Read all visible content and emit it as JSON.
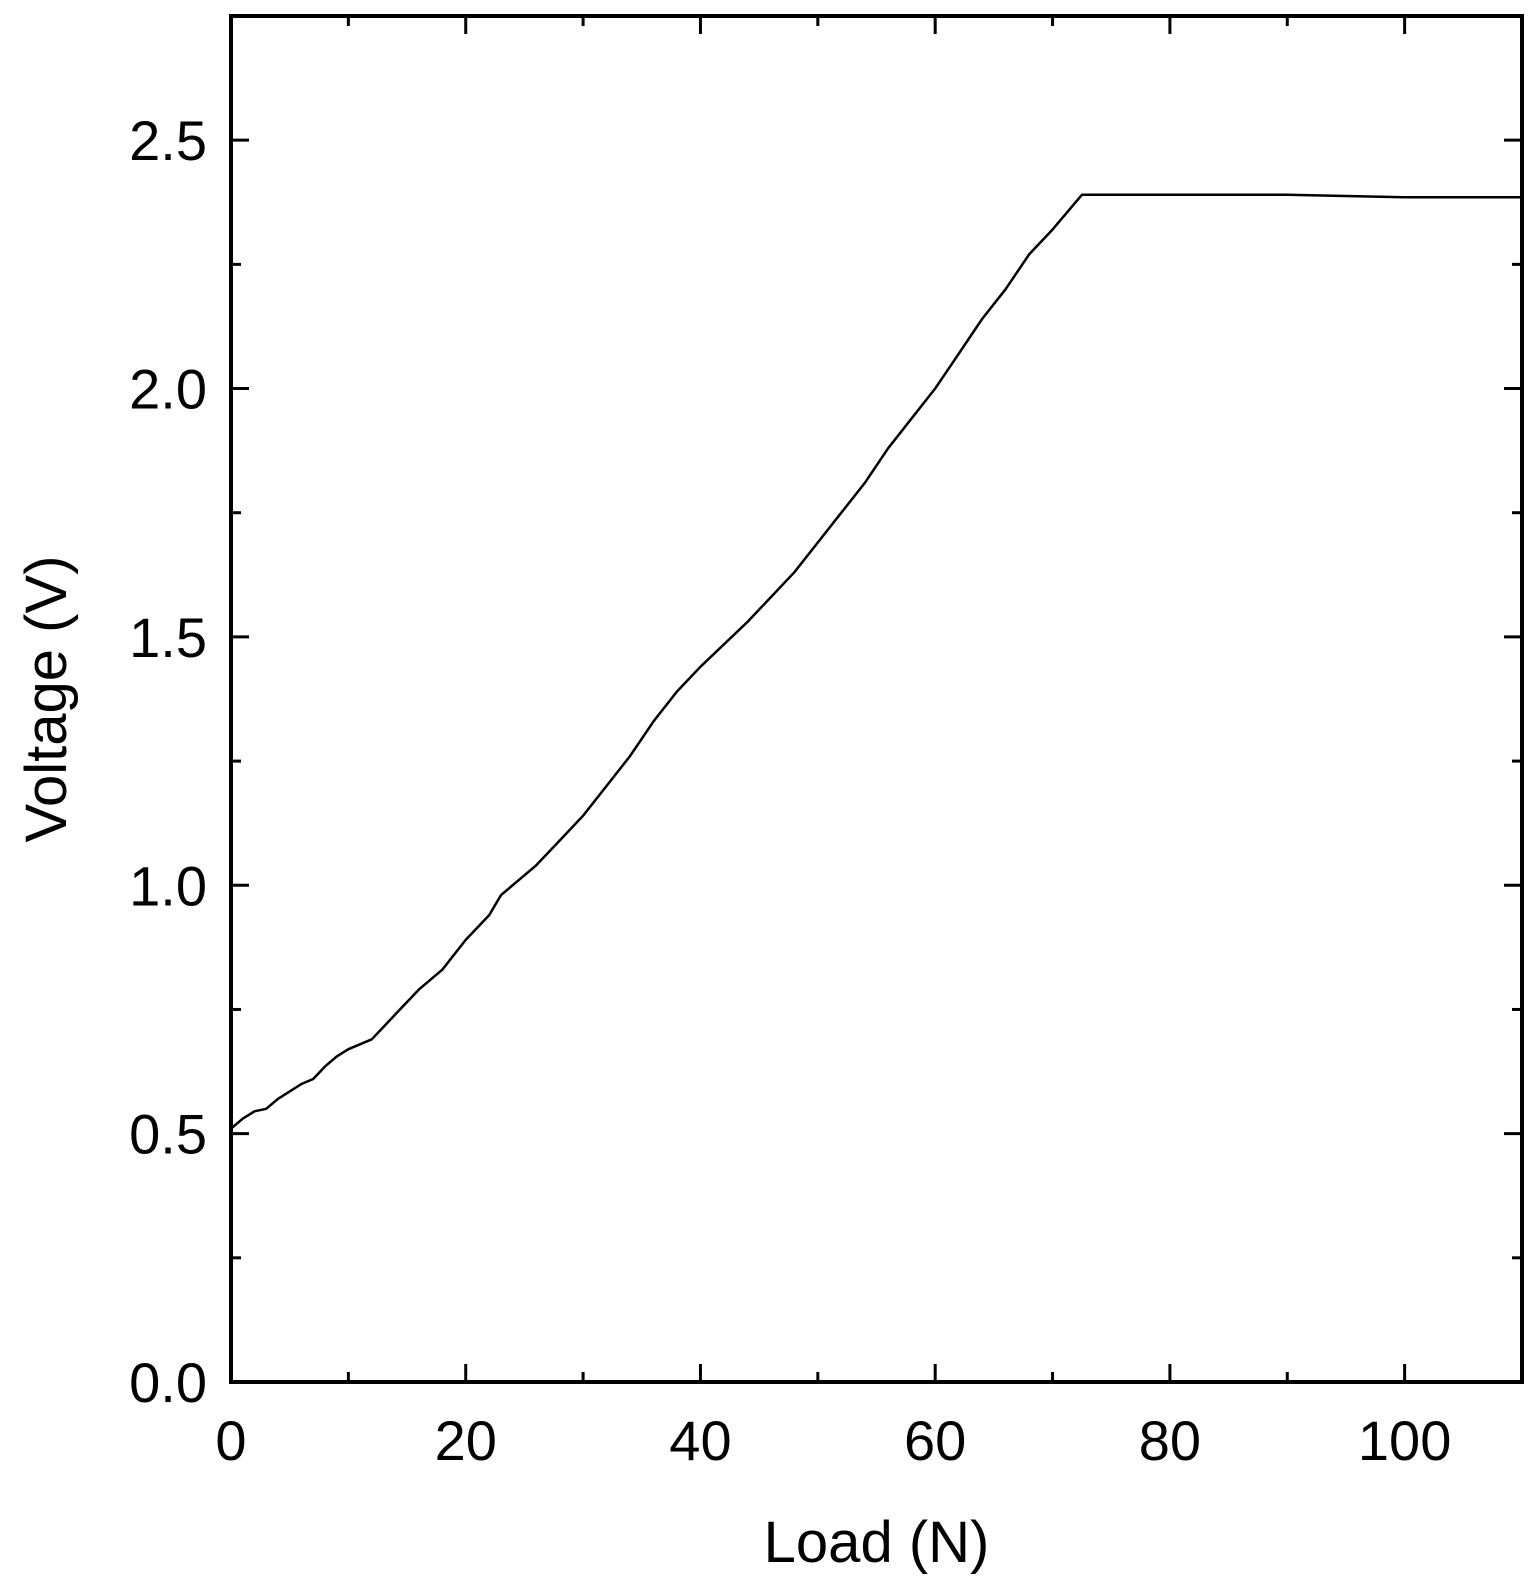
{
  "chart_data": {
    "type": "line",
    "title": "",
    "xlabel": "Load (N)",
    "ylabel": "Voltage (V)",
    "xlim": [
      0,
      110
    ],
    "ylim": [
      0,
      2.75
    ],
    "x_ticks_major": [
      0,
      20,
      40,
      60,
      80,
      100
    ],
    "x_ticks_minor": [
      10,
      30,
      50,
      70,
      90
    ],
    "x_tick_labels": [
      "0",
      "20",
      "40",
      "60",
      "80",
      "100"
    ],
    "y_ticks_major": [
      0.0,
      0.5,
      1.0,
      1.5,
      2.0,
      2.5
    ],
    "y_ticks_minor": [
      0.25,
      0.75,
      1.25,
      1.75,
      2.25
    ],
    "y_tick_labels": [
      "0.0",
      "0.5",
      "1.0",
      "1.5",
      "2.0",
      "2.5"
    ],
    "grid": false,
    "legend": "none",
    "colors": {
      "line": "#000000",
      "frame": "#000000",
      "background": "#ffffff"
    },
    "series": [
      {
        "x": [
          0,
          1,
          2,
          3,
          4,
          5,
          6,
          7,
          8,
          9,
          10,
          12,
          14,
          16,
          18,
          20,
          22,
          23,
          26,
          28,
          30,
          32,
          34,
          36,
          38,
          40,
          44,
          48,
          50,
          52,
          54,
          56,
          58,
          60,
          62,
          64,
          66,
          68,
          70,
          72.5,
          80,
          90,
          100,
          110
        ],
        "y": [
          0.51,
          0.53,
          0.545,
          0.55,
          0.57,
          0.585,
          0.6,
          0.61,
          0.635,
          0.655,
          0.67,
          0.69,
          0.74,
          0.79,
          0.83,
          0.89,
          0.94,
          0.98,
          1.04,
          1.09,
          1.14,
          1.2,
          1.26,
          1.33,
          1.39,
          1.44,
          1.53,
          1.63,
          1.69,
          1.75,
          1.81,
          1.88,
          1.94,
          2.0,
          2.07,
          2.14,
          2.2,
          2.27,
          2.32,
          2.39,
          2.39,
          2.39,
          2.385,
          2.385
        ]
      }
    ]
  }
}
